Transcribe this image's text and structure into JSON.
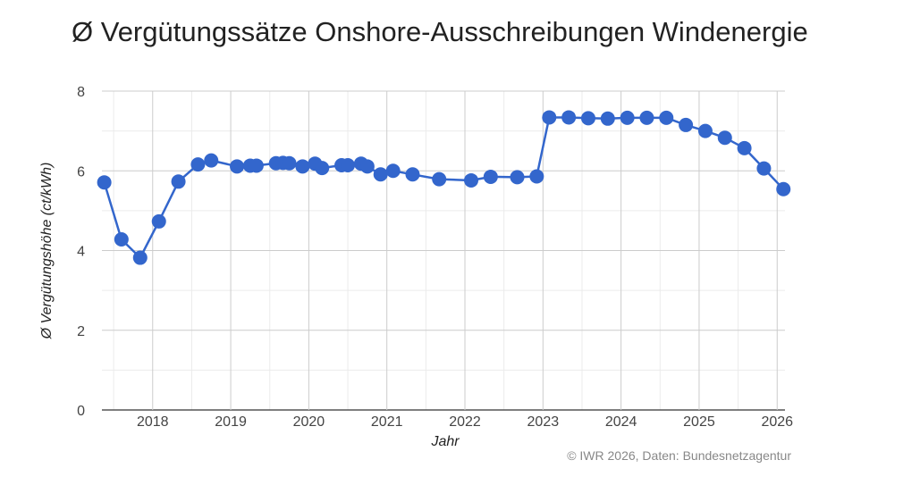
{
  "chart_data": {
    "type": "line",
    "title": "Ø Vergütungssätze Onshore-Ausschreibungen Windenergie",
    "xlabel": "Jahr",
    "ylabel": "Ø Vergütungshöhe (ct/kWh)",
    "x_ticks": [
      "2018",
      "2019",
      "2020",
      "2021",
      "2022",
      "2023",
      "2024",
      "2025",
      "2026"
    ],
    "y_ticks": [
      "0",
      "2",
      "4",
      "6",
      "8"
    ],
    "xlim": [
      2017.35,
      2026.1
    ],
    "ylim": [
      0,
      8
    ],
    "grid": true,
    "legend": "none",
    "series": [
      {
        "color": "#3366cc",
        "points": [
          [
            2017.38,
            5.71
          ],
          [
            2017.6,
            4.28
          ],
          [
            2017.84,
            3.82
          ],
          [
            2018.08,
            4.73
          ],
          [
            2018.33,
            5.73
          ],
          [
            2018.58,
            6.16
          ],
          [
            2018.75,
            6.26
          ],
          [
            2019.08,
            6.11
          ],
          [
            2019.25,
            6.13
          ],
          [
            2019.33,
            6.13
          ],
          [
            2019.58,
            6.19
          ],
          [
            2019.67,
            6.2
          ],
          [
            2019.75,
            6.19
          ],
          [
            2019.92,
            6.11
          ],
          [
            2020.08,
            6.18
          ],
          [
            2020.17,
            6.07
          ],
          [
            2020.42,
            6.14
          ],
          [
            2020.5,
            6.14
          ],
          [
            2020.67,
            6.18
          ],
          [
            2020.75,
            6.11
          ],
          [
            2020.92,
            5.91
          ],
          [
            2021.08,
            6.0
          ],
          [
            2021.33,
            5.91
          ],
          [
            2021.67,
            5.79
          ],
          [
            2022.08,
            5.76
          ],
          [
            2022.33,
            5.85
          ],
          [
            2022.67,
            5.84
          ],
          [
            2022.92,
            5.86
          ],
          [
            2023.08,
            7.34
          ],
          [
            2023.33,
            7.34
          ],
          [
            2023.58,
            7.32
          ],
          [
            2023.83,
            7.31
          ],
          [
            2024.08,
            7.33
          ],
          [
            2024.33,
            7.33
          ],
          [
            2024.58,
            7.33
          ],
          [
            2024.83,
            7.15
          ],
          [
            2025.08,
            7.0
          ],
          [
            2025.33,
            6.83
          ],
          [
            2025.58,
            6.57
          ],
          [
            2025.83,
            6.06
          ],
          [
            2026.08,
            5.54
          ]
        ]
      }
    ]
  },
  "source": "© IWR 2026, Daten: Bundesnetzagentur"
}
